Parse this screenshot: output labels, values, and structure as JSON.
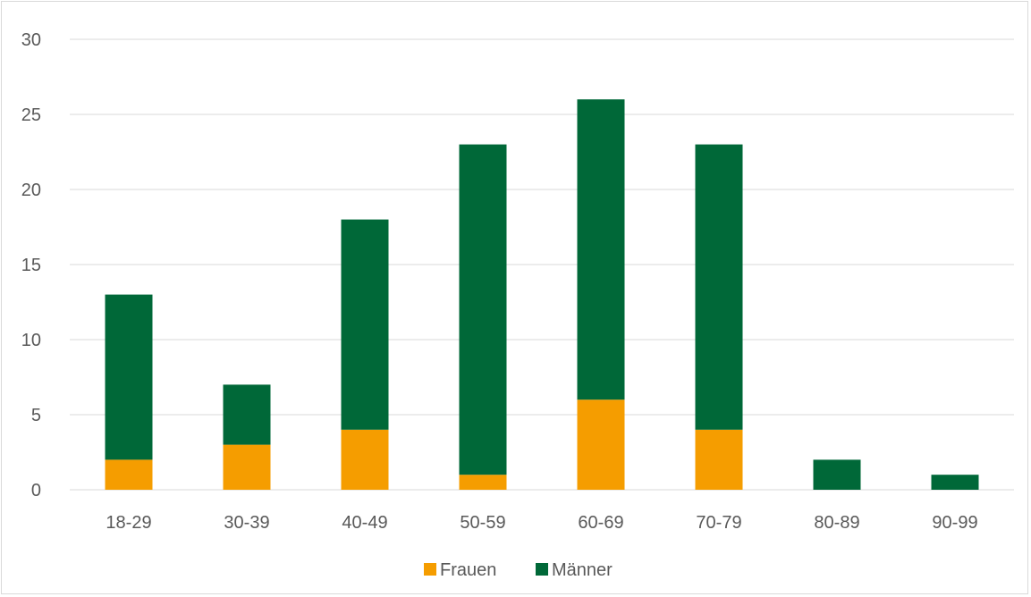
{
  "chart_data": {
    "type": "bar",
    "stacked": true,
    "categories": [
      "18-29",
      "30-39",
      "40-49",
      "50-59",
      "60-69",
      "70-79",
      "80-89",
      "90-99"
    ],
    "series": [
      {
        "name": "Frauen",
        "color": "#f59d00",
        "values": [
          2,
          3,
          4,
          1,
          6,
          4,
          0,
          0
        ]
      },
      {
        "name": "Männer",
        "color": "#006838",
        "values": [
          11,
          4,
          14,
          22,
          20,
          19,
          2,
          1
        ]
      }
    ],
    "title": "",
    "xlabel": "",
    "ylabel": "",
    "ylim": [
      0,
      30
    ],
    "yticks": [
      0,
      5,
      10,
      15,
      20,
      25,
      30
    ],
    "grid": true,
    "legend_position": "bottom",
    "gridline_color": "#d9d9d9"
  }
}
